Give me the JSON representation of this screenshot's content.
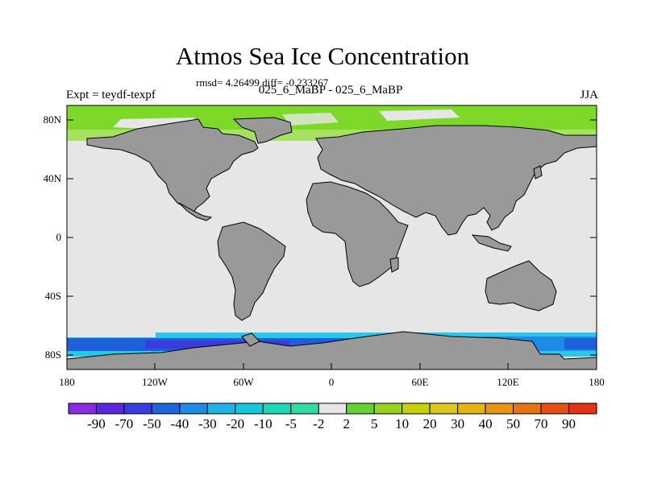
{
  "map": {
    "title": "Atmos Sea Ice Concentration",
    "stats_text": "rmsd= 4.26499 diff= -0.233267",
    "subtitle": "025_6_MaBP - 025_6_MaBP",
    "left_label": "Expt = teydf-texpf",
    "right_label": "JJA",
    "lat_ticks": [
      "80N",
      "40N",
      "0",
      "40S",
      "80S"
    ],
    "lon_ticks": [
      "180",
      "120W",
      "60W",
      "0",
      "60E",
      "120E",
      "180"
    ],
    "colors": {
      "land": "#999999",
      "ocean_no_change": "#e6e6e6",
      "positive_green": "#7dd82a",
      "negative_blue": "#1e60dc",
      "negative_cyan": "#28c8e6"
    }
  },
  "colorbar": {
    "labels": [
      "-90",
      "-70",
      "-50",
      "-40",
      "-30",
      "-20",
      "-10",
      "-5",
      "-2",
      "2",
      "5",
      "10",
      "20",
      "30",
      "40",
      "50",
      "70",
      "90"
    ],
    "colors": [
      "#8a2be2",
      "#5a28dc",
      "#3a3ce0",
      "#1e64dc",
      "#1e8ce6",
      "#1eb4e6",
      "#14c8dc",
      "#1ed7b4",
      "#32dca0",
      "#e6e6e6",
      "#64d232",
      "#96d21e",
      "#c8d20a",
      "#dcc81e",
      "#e6b414",
      "#e69614",
      "#e67314",
      "#e65014",
      "#e63214"
    ]
  }
}
